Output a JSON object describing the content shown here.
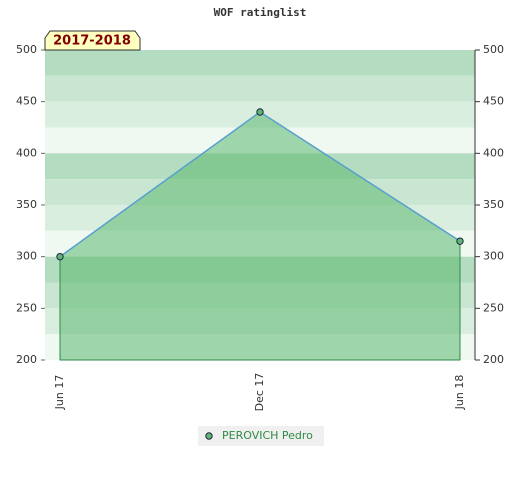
{
  "chart_data": {
    "type": "area",
    "title": "WOF ratinglist",
    "annotation": "2017-2018",
    "categories": [
      "Jun 17",
      "Dec 17",
      "Jun 18"
    ],
    "series": [
      {
        "name": "PEROVICH Pedro",
        "color": "#2e8b44",
        "line_color": "#5aa0d0",
        "fill": "#5cb870",
        "values": [
          300,
          440,
          315
        ]
      }
    ],
    "ylim": [
      200,
      500
    ],
    "yticks": [
      200,
      250,
      300,
      350,
      400,
      450,
      500
    ],
    "y2lim": [
      200,
      500
    ],
    "y2ticks": [
      200,
      250,
      300,
      350,
      400,
      450,
      500
    ],
    "band_colors": [
      "#b3dcc0",
      "#c9e6d2",
      "#daeee0",
      "#f0f8f2"
    ],
    "legend": "bottom"
  }
}
